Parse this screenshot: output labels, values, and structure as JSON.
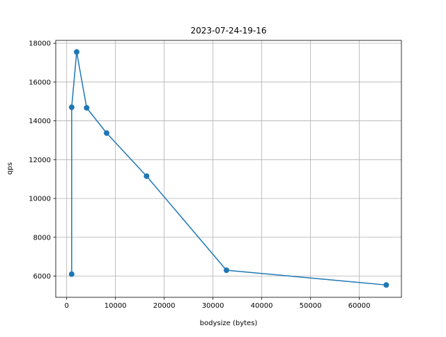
{
  "chart_data": {
    "type": "line",
    "title": "2023-07-24-19-16",
    "xlabel": "bodysize (bytes)",
    "ylabel": "qps",
    "xlim": [
      -2240,
      68640
    ],
    "ylim": [
      4905,
      18147
    ],
    "grid": true,
    "x_ticks": [
      0,
      10000,
      20000,
      30000,
      40000,
      50000,
      60000
    ],
    "y_ticks": [
      6000,
      8000,
      10000,
      12000,
      14000,
      16000,
      18000
    ],
    "x_tick_labels": [
      "0",
      "10000",
      "20000",
      "30000",
      "40000",
      "50000",
      "60000"
    ],
    "y_tick_labels": [
      "6000",
      "8000",
      "10000",
      "12000",
      "14000",
      "16000",
      "18000"
    ],
    "series": [
      {
        "color": "#1f77b4",
        "marker": "circle",
        "x": [
          1024,
          1024,
          2048,
          4096,
          8192,
          16384,
          32768,
          65536
        ],
        "y": [
          6100,
          14700,
          17550,
          14670,
          13370,
          11150,
          6300,
          5540
        ]
      }
    ]
  }
}
